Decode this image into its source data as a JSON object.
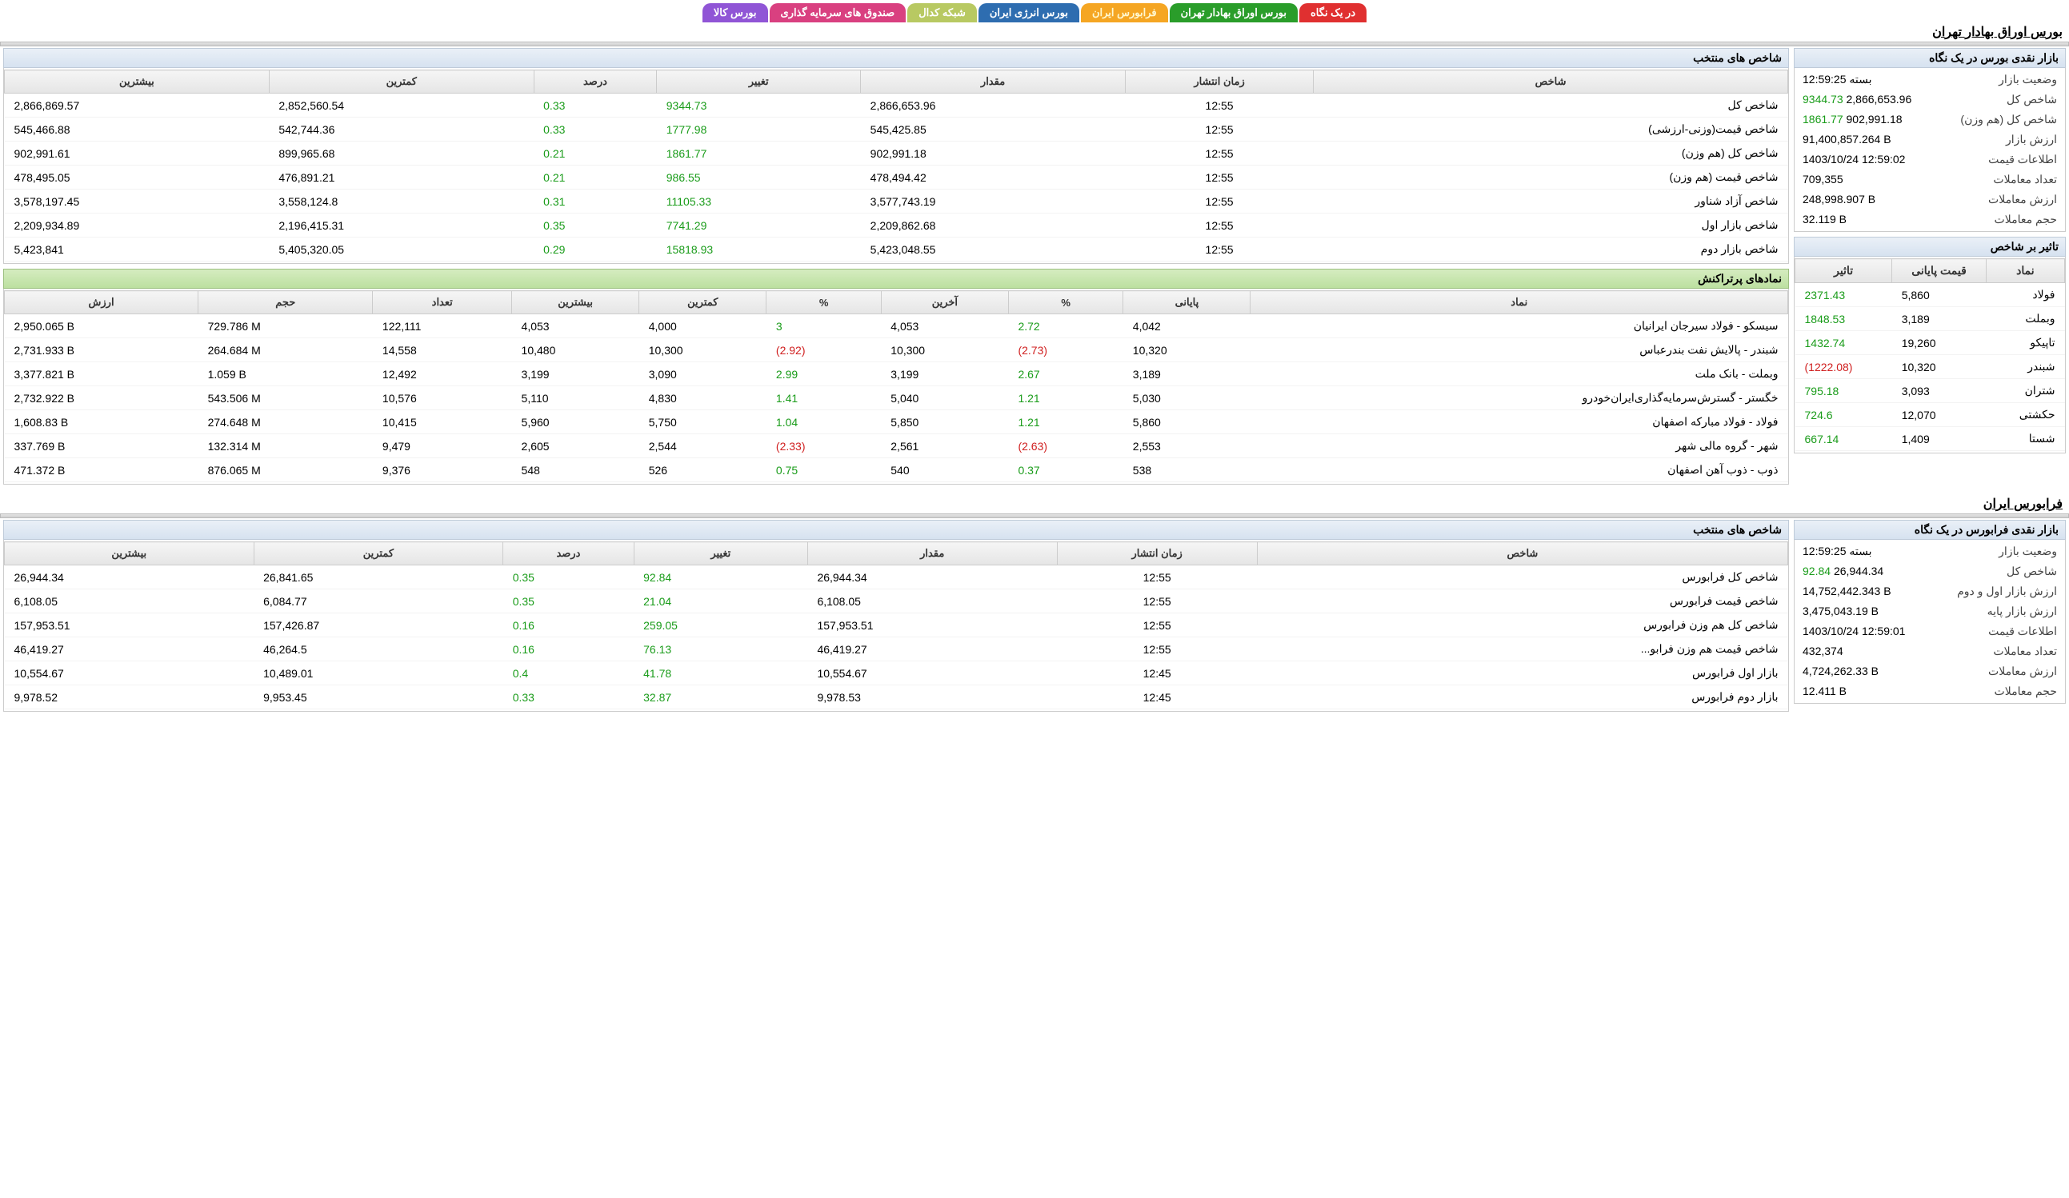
{
  "tabs": {
    "glance": "در یک نگاه",
    "tse": "بورس اوراق بهادار تهران",
    "farabourse": "فرابورس ایران",
    "energy": "بورس انرژی ایران",
    "codal": "شبکه کدال",
    "funds": "صندوق های سرمایه گذاری",
    "commodity": "بورس کالا"
  },
  "tse": {
    "title": "بورس اوراق بهادار تهران",
    "overview_title": "بازار نقدی بورس در یک نگاه",
    "indices_title": "شاخص های منتخب",
    "impact_title": "تاثیر بر شاخص",
    "active_title": "نمادهای پرتراکنش",
    "overview": [
      {
        "label": "وضعیت بازار",
        "value": "بسته 12:59:25",
        "cls": ""
      },
      {
        "label": "شاخص کل",
        "value": "2,866,653.96",
        "delta": "9344.73",
        "cls": "green"
      },
      {
        "label": "شاخص کل (هم وزن)",
        "value": "902,991.18",
        "delta": "1861.77",
        "cls": "green"
      },
      {
        "label": "ارزش بازار",
        "value": "91,400,857.264 B",
        "cls": ""
      },
      {
        "label": "اطلاعات قیمت",
        "value": "1403/10/24 12:59:02",
        "cls": ""
      },
      {
        "label": "تعداد معاملات",
        "value": "709,355",
        "cls": ""
      },
      {
        "label": "ارزش معاملات",
        "value": "248,998.907 B",
        "cls": ""
      },
      {
        "label": "حجم معاملات",
        "value": "32.119 B",
        "cls": ""
      }
    ],
    "indexHeaders": [
      "شاخص",
      "زمان انتشار",
      "مقدار",
      "تغییر",
      "درصد",
      "کمترین",
      "بیشترین"
    ],
    "indices": [
      [
        "شاخص کل",
        "12:55",
        "2,866,653.96",
        "9344.73",
        "0.33",
        "2,852,560.54",
        "2,866,869.57"
      ],
      [
        "شاخص قیمت(وزنی-ارزشی)",
        "12:55",
        "545,425.85",
        "1777.98",
        "0.33",
        "542,744.36",
        "545,466.88"
      ],
      [
        "شاخص کل (هم وزن)",
        "12:55",
        "902,991.18",
        "1861.77",
        "0.21",
        "899,965.68",
        "902,991.61"
      ],
      [
        "شاخص قیمت (هم وزن)",
        "12:55",
        "478,494.42",
        "986.55",
        "0.21",
        "476,891.21",
        "478,495.05"
      ],
      [
        "شاخص آزاد شناور",
        "12:55",
        "3,577,743.19",
        "11105.33",
        "0.31",
        "3,558,124.8",
        "3,578,197.45"
      ],
      [
        "شاخص بازار اول",
        "12:55",
        "2,209,862.68",
        "7741.29",
        "0.35",
        "2,196,415.31",
        "2,209,934.89"
      ],
      [
        "شاخص بازار دوم",
        "12:55",
        "5,423,048.55",
        "15818.93",
        "0.29",
        "5,405,320.05",
        "5,423,841"
      ]
    ],
    "impactHeaders": [
      "نماد",
      "قیمت پایانی",
      "تاثیر"
    ],
    "impact": [
      [
        "فولاد",
        "5,860",
        "2371.43",
        "green"
      ],
      [
        "وبملت",
        "3,189",
        "1848.53",
        "green"
      ],
      [
        "تاپیکو",
        "19,260",
        "1432.74",
        "green"
      ],
      [
        "شبندر",
        "10,320",
        "(1222.08)",
        "red"
      ],
      [
        "شتران",
        "3,093",
        "795.18",
        "green"
      ],
      [
        "حکشتی",
        "12,070",
        "724.6",
        "green"
      ],
      [
        "شستا",
        "1,409",
        "667.14",
        "green"
      ]
    ],
    "activeHeaders": [
      "نماد",
      "پایانی",
      "%",
      "آخرین",
      "%",
      "کمترین",
      "بیشترین",
      "تعداد",
      "حجم",
      "ارزش"
    ],
    "active": [
      [
        "سیسکو - فولاد سیرجان ایرانیان",
        "4,042",
        "2.72",
        "4,053",
        "3",
        "4,000",
        "4,053",
        "122,111",
        "729.786 M",
        "2,950.065 B",
        "green",
        "green"
      ],
      [
        "شبندر - پالایش نفت بندرعباس",
        "10,320",
        "(2.73)",
        "10,300",
        "(2.92)",
        "10,300",
        "10,480",
        "14,558",
        "264.684 M",
        "2,731.933 B",
        "red",
        "red"
      ],
      [
        "وبملت - بانک ملت",
        "3,189",
        "2.67",
        "3,199",
        "2.99",
        "3,090",
        "3,199",
        "12,492",
        "1.059 B",
        "3,377.821 B",
        "green",
        "green"
      ],
      [
        "خگستر - گسترش‌سرمایه‌گذاری‌ایران‌خودرو",
        "5,030",
        "1.21",
        "5,040",
        "1.41",
        "4,830",
        "5,110",
        "10,576",
        "543.506 M",
        "2,732.922 B",
        "green",
        "green"
      ],
      [
        "فولاد - فولاد مبارکه اصفهان",
        "5,860",
        "1.21",
        "5,850",
        "1.04",
        "5,750",
        "5,960",
        "10,415",
        "274.648 M",
        "1,608.83 B",
        "green",
        "green"
      ],
      [
        "شهر - گروه مالی شهر",
        "2,553",
        "(2.63)",
        "2,561",
        "(2.33)",
        "2,544",
        "2,605",
        "9,479",
        "132.314 M",
        "337.769 B",
        "red",
        "red"
      ],
      [
        "ذوب - ذوب آهن اصفهان",
        "538",
        "0.37",
        "540",
        "0.75",
        "526",
        "548",
        "9,376",
        "876.065 M",
        "471.372 B",
        "green",
        "green"
      ]
    ]
  },
  "fara": {
    "title": "فرابورس ایران",
    "overview_title": "بازار نقدی فرابورس در یک نگاه",
    "indices_title": "شاخص های منتخب",
    "overview": [
      {
        "label": "وضعیت بازار",
        "value": "بسته 12:59:25",
        "cls": ""
      },
      {
        "label": "شاخص کل",
        "value": "26,944.34",
        "delta": "92.84",
        "cls": "green"
      },
      {
        "label": "ارزش بازار اول و دوم",
        "value": "14,752,442.343 B",
        "cls": ""
      },
      {
        "label": "ارزش بازار پایه",
        "value": "3,475,043.19 B",
        "cls": ""
      },
      {
        "label": "اطلاعات قیمت",
        "value": "1403/10/24 12:59:01",
        "cls": ""
      },
      {
        "label": "تعداد معاملات",
        "value": "432,374",
        "cls": ""
      },
      {
        "label": "ارزش معاملات",
        "value": "4,724,262.33 B",
        "cls": ""
      },
      {
        "label": "حجم معاملات",
        "value": "12.411 B",
        "cls": ""
      }
    ],
    "indexHeaders": [
      "شاخص",
      "زمان انتشار",
      "مقدار",
      "تغییر",
      "درصد",
      "کمترین",
      "بیشترین"
    ],
    "indices": [
      [
        "شاخص کل فرابورس",
        "12:55",
        "26,944.34",
        "92.84",
        "0.35",
        "26,841.65",
        "26,944.34"
      ],
      [
        "شاخص قیمت فرابورس",
        "12:55",
        "6,108.05",
        "21.04",
        "0.35",
        "6,084.77",
        "6,108.05"
      ],
      [
        "شاخص کل هم وزن فرابورس",
        "12:55",
        "157,953.51",
        "259.05",
        "0.16",
        "157,426.87",
        "157,953.51"
      ],
      [
        "شاخص قیمت هم وزن فرابو...",
        "12:55",
        "46,419.27",
        "76.13",
        "0.16",
        "46,264.5",
        "46,419.27"
      ],
      [
        "بازار اول فرابورس",
        "12:45",
        "10,554.67",
        "41.78",
        "0.4",
        "10,489.01",
        "10,554.67"
      ],
      [
        "بازار دوم فرابورس",
        "12:45",
        "9,978.53",
        "32.87",
        "0.33",
        "9,953.45",
        "9,978.52"
      ]
    ]
  }
}
